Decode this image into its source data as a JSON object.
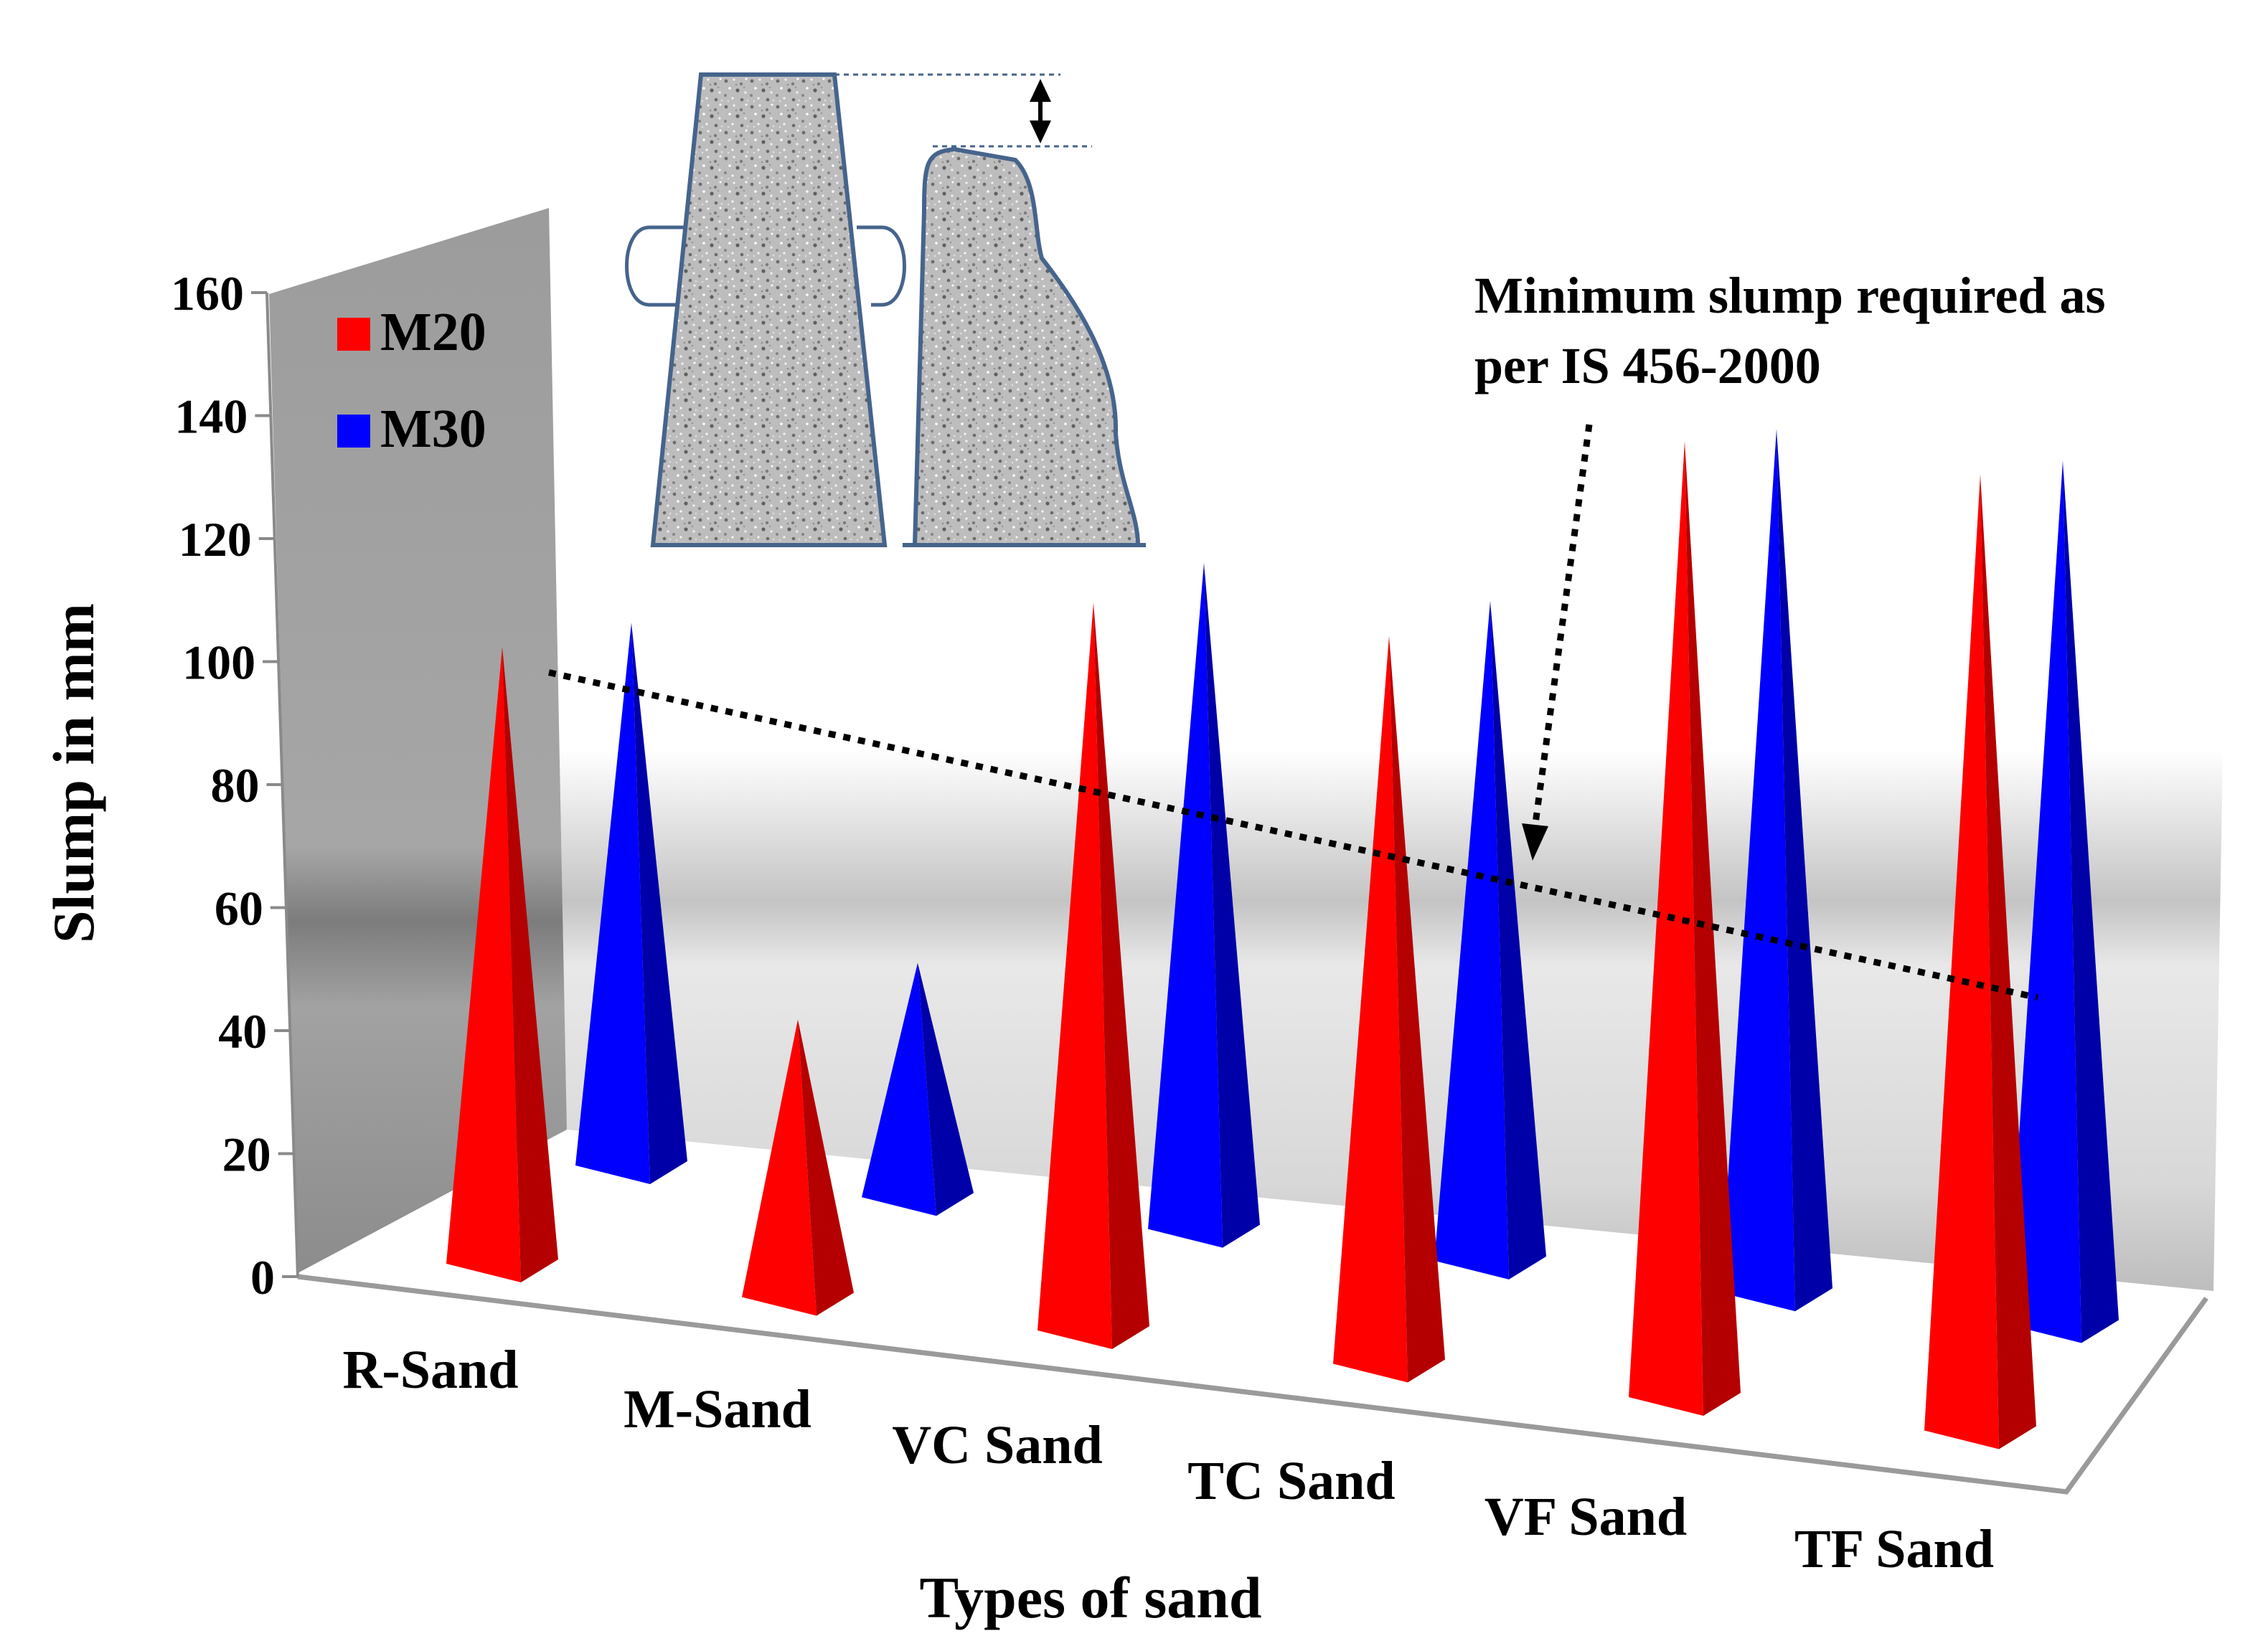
{
  "chart_data": {
    "type": "bar",
    "subtype": "3d-cone",
    "categories": [
      "R-Sand",
      "M-Sand",
      "VC Sand",
      "TC Sand",
      "VF Sand",
      "TF Sand"
    ],
    "series": [
      {
        "name": "M20",
        "color": "#ff0000",
        "values": [
          100,
          45,
          118,
          118,
          155,
          155
        ]
      },
      {
        "name": "M30",
        "color": "#0000ff",
        "values": [
          88,
          38,
          108,
          107,
          140,
          140
        ]
      }
    ],
    "xlabel": "Types of sand",
    "ylabel": "Slump in mm",
    "ylim": [
      0,
      160
    ],
    "yticks": [
      0,
      20,
      40,
      60,
      80,
      100,
      120,
      140,
      160
    ],
    "legend": {
      "position": "top-left",
      "entries": [
        "M20",
        "M30"
      ]
    },
    "annotation": {
      "lines": [
        "Minimum slump required as",
        "per IS 456-2000"
      ],
      "value": 75
    },
    "inset": "slump-cone-test-illustration"
  }
}
